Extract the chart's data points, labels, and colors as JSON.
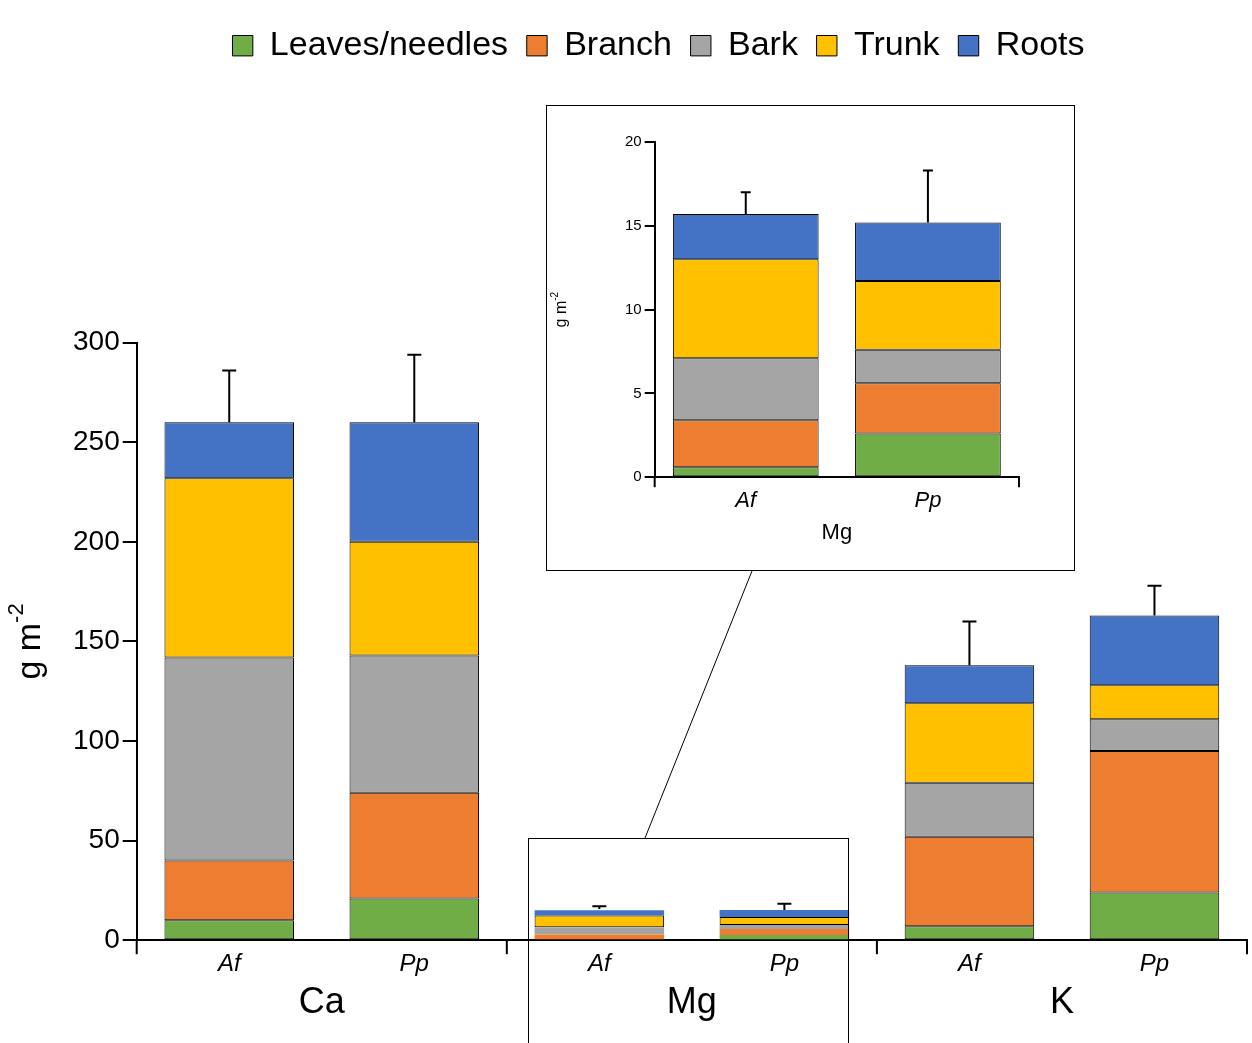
{
  "chart_data": [
    {
      "type": "bar",
      "stacked": true,
      "ylabel": "g m$^{-2}$",
      "categories": [
        "Af",
        "Pp",
        "Af",
        "Pp",
        "Af",
        "Pp"
      ],
      "annotations": [
        "Ca",
        "Mg",
        "K"
      ],
      "ylim": [
        0,
        300
      ],
      "yticks": [
        0,
        50,
        100,
        150,
        200,
        250,
        300
      ],
      "grid": false,
      "legend": "top",
      "series": [
        {
          "name": "Leaves/needles",
          "color": "#70ad47",
          "values": [
            10,
            21,
            null,
            2.6,
            7,
            24
          ]
        },
        {
          "name": "Branch",
          "color": "#ed7d31",
          "values": [
            30,
            53,
            2.8,
            3.0,
            45,
            71
          ]
        },
        {
          "name": "Bark",
          "color": "#a5a5a5",
          "values": [
            102,
            69,
            3.7,
            2.0,
            27,
            16
          ]
        },
        {
          "name": "Trunk",
          "color": "#ffc000",
          "values": [
            90,
            57,
            5.9,
            4.1,
            40,
            17
          ]
        },
        {
          "name": "Roots",
          "color": "#4472c4",
          "values": [
            28,
            60,
            2.7,
            3.5,
            19,
            35
          ],
          "errors": [
            [
              260,
              286
            ],
            [
              260,
              294
            ],
            [
              15.7,
              17.0
            ],
            [
              15.2,
              18.3
            ],
            [
              138,
              160
            ],
            [
              163,
              178
            ]
          ]
        }
      ]
    },
    {
      "type": "bar",
      "stacked": true,
      "ylabel": "g m$^{-2}$",
      "xlabel": "Mg",
      "categories": [
        "Af",
        "Pp"
      ],
      "ylim": [
        0,
        20
      ],
      "yticks": [
        0,
        5,
        10,
        15,
        20
      ],
      "grid": false,
      "series": [
        {
          "color": "#70ad47",
          "values": [
            0.6,
            2.6
          ]
        },
        {
          "color": "#ed7d31",
          "values": [
            2.8,
            3.0
          ]
        },
        {
          "color": "#a5a5a5",
          "values": [
            3.7,
            2.0
          ]
        },
        {
          "color": "#ffc000",
          "values": [
            5.9,
            4.1
          ]
        },
        {
          "color": "#4472c4",
          "values": [
            2.7,
            3.5
          ],
          "errors": [
            [
              15.7,
              17.0
            ],
            [
              15.2,
              18.3
            ]
          ]
        }
      ]
    }
  ]
}
